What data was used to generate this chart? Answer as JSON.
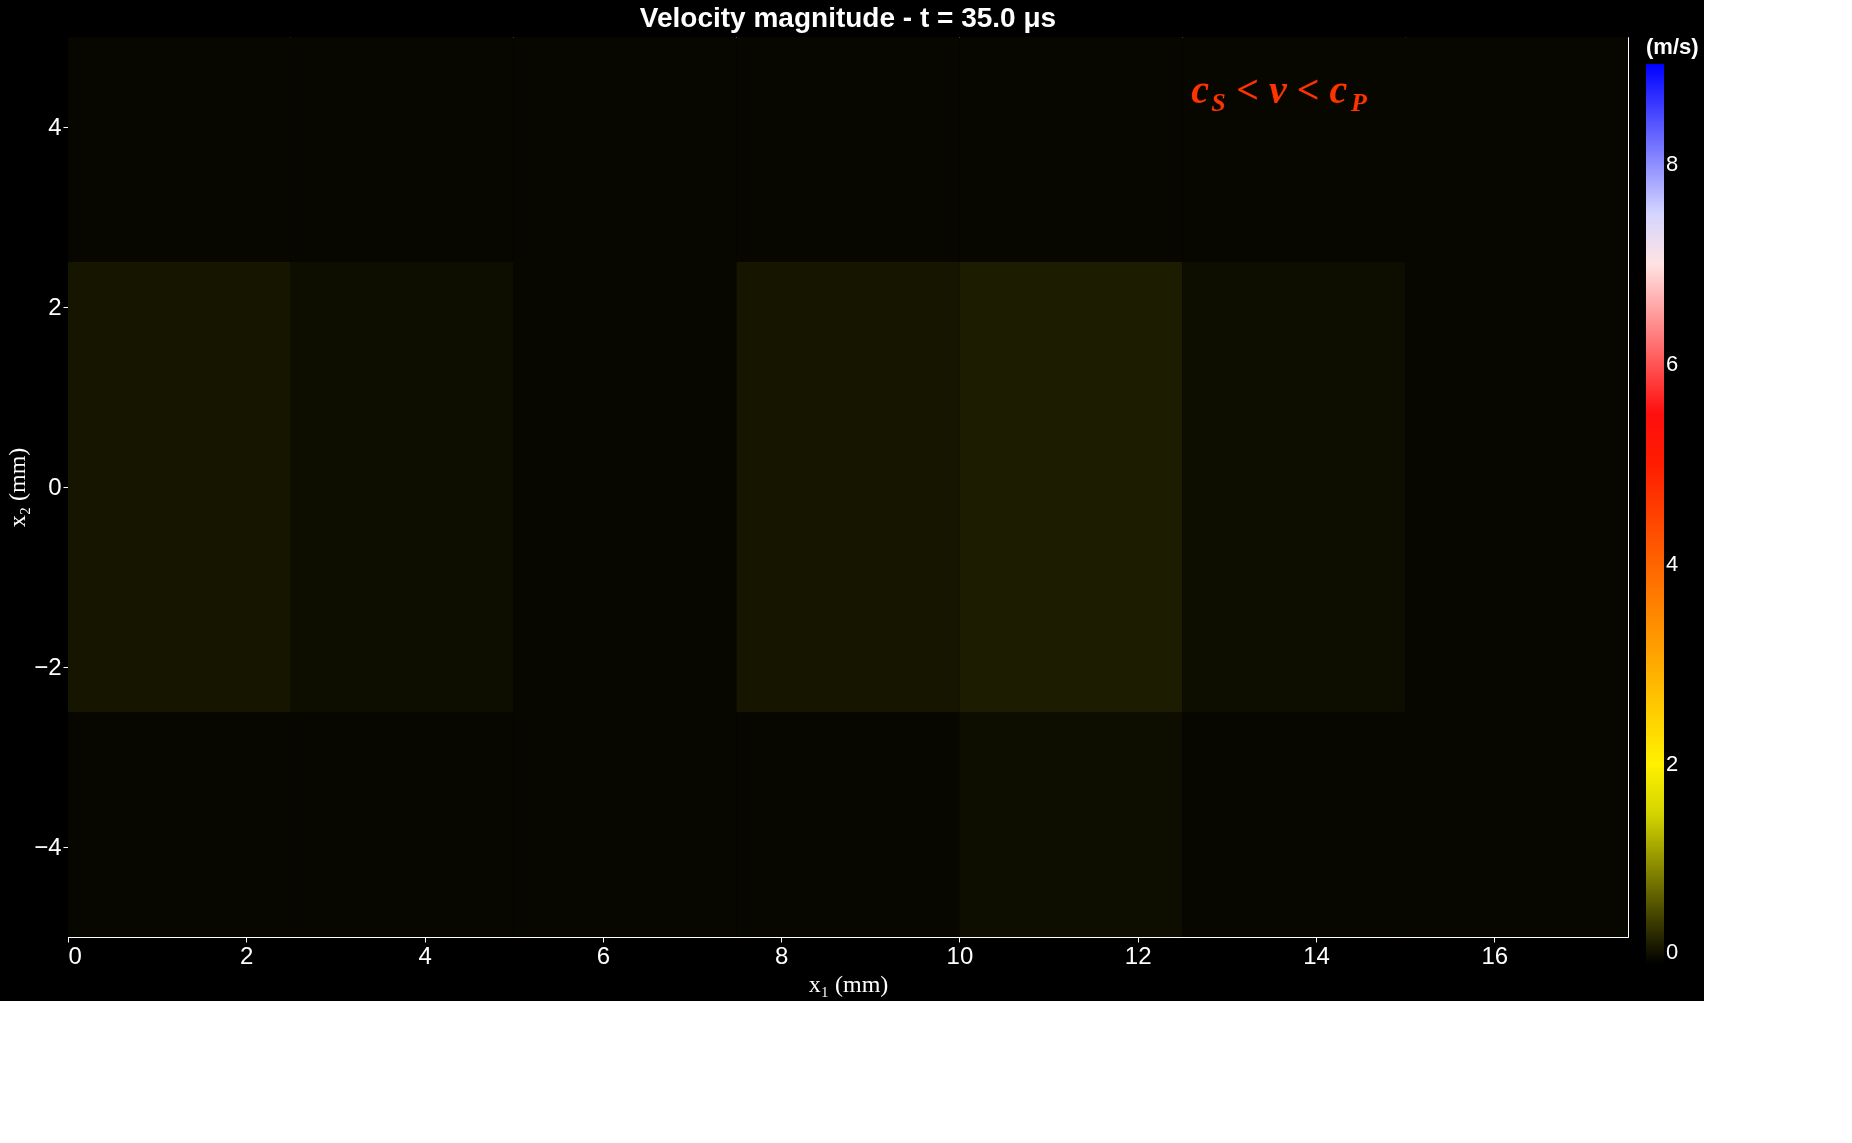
{
  "chart_data": {
    "type": "heatmap",
    "title": "Velocity magnitude - t = 35.0 μs",
    "xlabel": "x₁ (mm)",
    "ylabel": "x₂ (mm)",
    "clabel": "(m/s)",
    "annotations": [
      "c$_{S}$ < v < c$_{P}$"
    ],
    "x": [
      1.25,
      3.75,
      6.25,
      8.75,
      11.25,
      13.75,
      16.25
    ],
    "y": [
      3.75,
      1.25,
      -1.25,
      -3.75
    ],
    "cells": [
      [
        0.05,
        0.05,
        0.05,
        0.05,
        0.05,
        0.05,
        0.05
      ],
      [
        0.15,
        0.1,
        0.05,
        0.15,
        0.2,
        0.1,
        0.05
      ],
      [
        0.15,
        0.1,
        0.05,
        0.15,
        0.2,
        0.1,
        0.05
      ],
      [
        0.05,
        0.05,
        0.05,
        0.05,
        0.1,
        0.05,
        0.05
      ]
    ],
    "xlim": [
      0,
      17.5
    ],
    "ylim": [
      -5,
      5
    ],
    "xticks": [
      0,
      2,
      4,
      6,
      8,
      10,
      12,
      14,
      16
    ],
    "yticks": [
      -4,
      -2,
      0,
      2,
      4
    ],
    "clim": [
      0,
      9
    ],
    "cticks": [
      0,
      2,
      4,
      6,
      8
    ]
  }
}
